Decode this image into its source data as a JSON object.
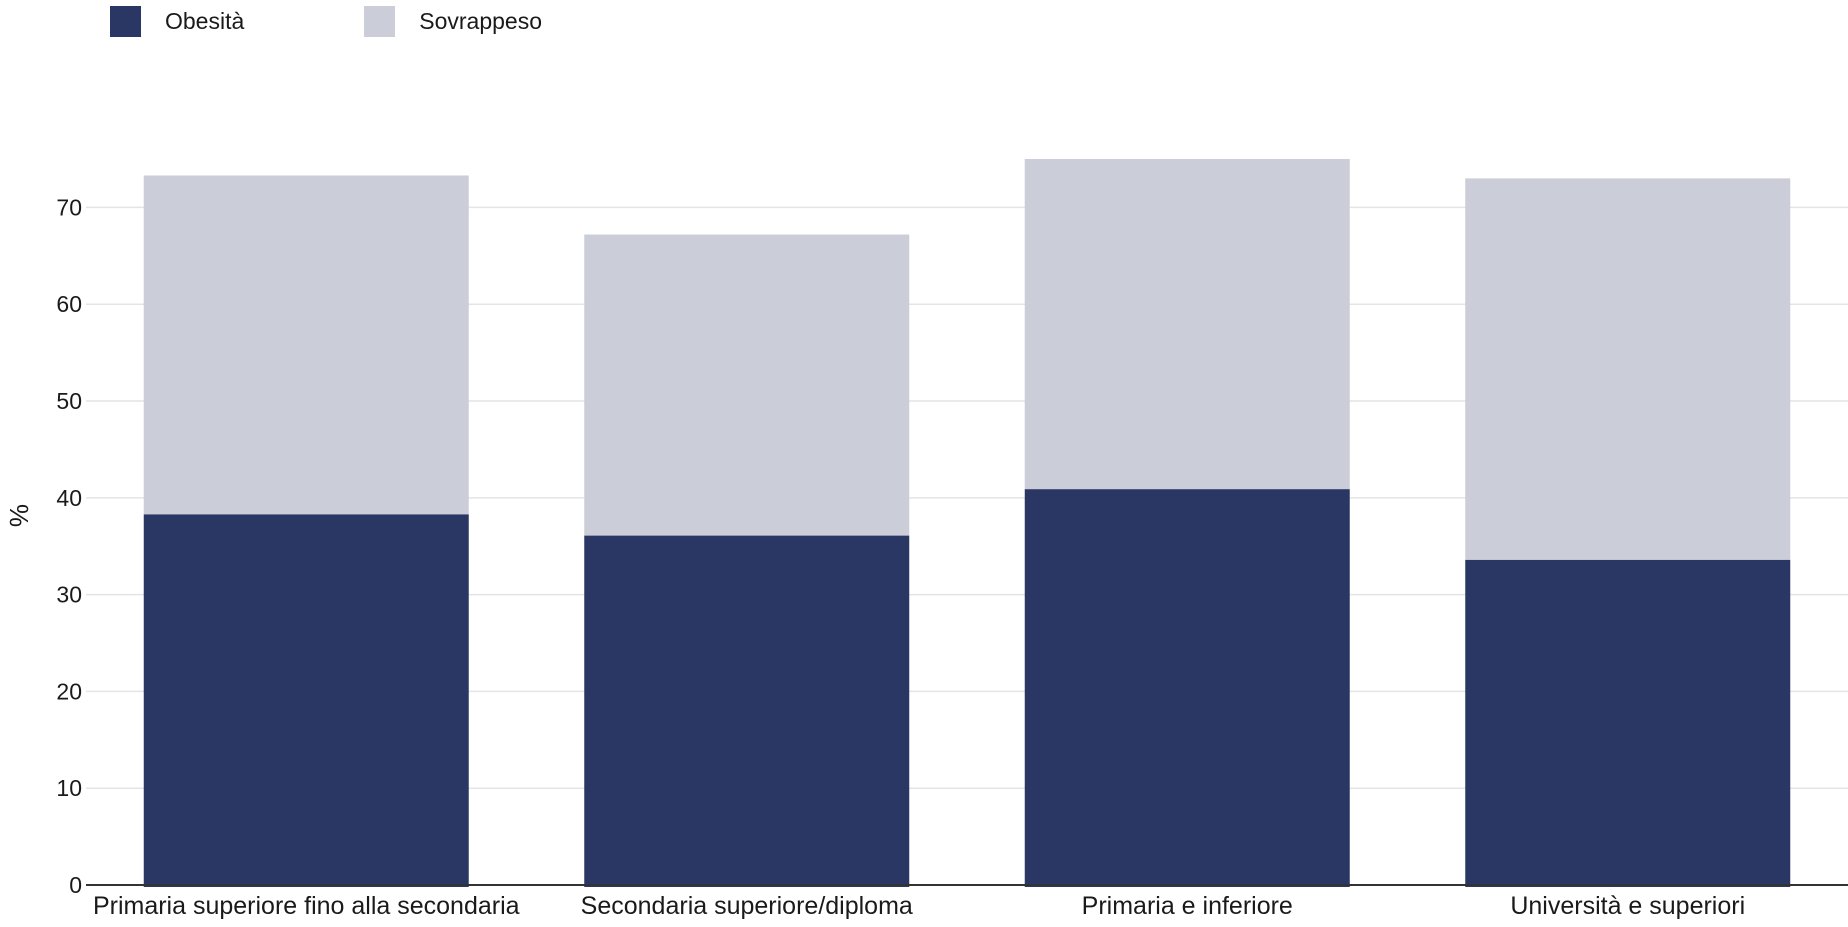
{
  "chart_data": {
    "type": "bar",
    "stacked": true,
    "categories": [
      "Primaria superiore fino alla secondaria",
      "Secondaria superiore/diploma",
      "Primaria e inferiore",
      "Università e superiori"
    ],
    "series": [
      {
        "name": "Obesità",
        "values": [
          38.3,
          36.1,
          40.9,
          33.6
        ],
        "color": "#2a3764"
      },
      {
        "name": "Sovrappeso",
        "values": [
          35.0,
          31.1,
          34.1,
          39.4
        ],
        "color": "#cbcdd9"
      }
    ],
    "ylabel": "%",
    "xlabel": "",
    "ylim": [
      0,
      78
    ],
    "yticks": [
      0,
      10,
      20,
      30,
      40,
      50,
      60,
      70
    ],
    "grid": true,
    "legend": "top-left"
  }
}
